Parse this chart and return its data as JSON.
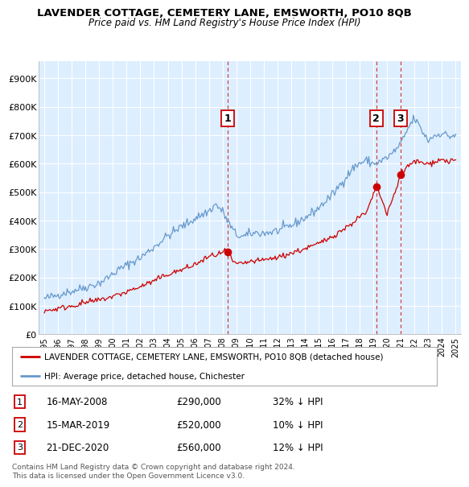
{
  "title": "LAVENDER COTTAGE, CEMETERY LANE, EMSWORTH, PO10 8QB",
  "subtitle": "Price paid vs. HM Land Registry's House Price Index (HPI)",
  "ylabel_ticks": [
    "£0",
    "£100K",
    "£200K",
    "£300K",
    "£400K",
    "£500K",
    "£600K",
    "£700K",
    "£800K",
    "£900K"
  ],
  "ytick_values": [
    0,
    100000,
    200000,
    300000,
    400000,
    500000,
    600000,
    700000,
    800000,
    900000
  ],
  "ylim": [
    0,
    960000
  ],
  "xlim_start": 1994.6,
  "xlim_end": 2025.4,
  "background_color": "#ddeeff",
  "fig_bg_color": "#ffffff",
  "grid_color": "#ffffff",
  "red_line_color": "#cc0000",
  "blue_line_color": "#6699cc",
  "sale_marker_color": "#cc0000",
  "sale_marker_size": 7,
  "vline_color": "#cc3333",
  "transactions": [
    {
      "num": 1,
      "date_str": "16-MAY-2008",
      "year": 2008.37,
      "price": 290000,
      "label": "32% ↓ HPI"
    },
    {
      "num": 2,
      "date_str": "15-MAR-2019",
      "year": 2019.21,
      "price": 520000,
      "label": "10% ↓ HPI"
    },
    {
      "num": 3,
      "date_str": "21-DEC-2020",
      "year": 2020.97,
      "price": 560000,
      "label": "12% ↓ HPI"
    }
  ],
  "legend_red_label": "LAVENDER COTTAGE, CEMETERY LANE, EMSWORTH, PO10 8QB (detached house)",
  "legend_blue_label": "HPI: Average price, detached house, Chichester",
  "footnote": "Contains HM Land Registry data © Crown copyright and database right 2024.\nThis data is licensed under the Open Government Licence v3.0.",
  "table_rows": [
    {
      "num": 1,
      "date": "16-MAY-2008",
      "price": "£290,000",
      "change": "32% ↓ HPI"
    },
    {
      "num": 2,
      "date": "15-MAR-2019",
      "price": "£520,000",
      "change": "10% ↓ HPI"
    },
    {
      "num": 3,
      "date": "21-DEC-2020",
      "price": "£560,000",
      "change": "12% ↓ HPI"
    }
  ],
  "hpi_anchors_x": [
    1995,
    1996,
    1997,
    1998,
    1999,
    2000,
    2001,
    2002,
    2003,
    2004,
    2005,
    2006,
    2007,
    2007.5,
    2008,
    2008.5,
    2009,
    2009.5,
    2010,
    2010.5,
    2011,
    2012,
    2013,
    2014,
    2015,
    2016,
    2017,
    2017.5,
    2018,
    2018.5,
    2019,
    2019.5,
    2020,
    2020.5,
    2021,
    2021.3,
    2021.6,
    2022,
    2022.3,
    2022.6,
    2023,
    2023.3,
    2023.6,
    2024,
    2024.3,
    2024.6,
    2025
  ],
  "hpi_anchors_y": [
    125000,
    138000,
    150000,
    163000,
    178000,
    208000,
    238000,
    265000,
    305000,
    345000,
    375000,
    405000,
    430000,
    455000,
    430000,
    385000,
    350000,
    345000,
    355000,
    360000,
    358000,
    365000,
    385000,
    410000,
    445000,
    490000,
    550000,
    580000,
    600000,
    610000,
    600000,
    605000,
    620000,
    640000,
    670000,
    700000,
    730000,
    760000,
    735000,
    710000,
    680000,
    695000,
    700000,
    710000,
    700000,
    695000,
    700000
  ],
  "red_anchors_x": [
    1995,
    1996,
    1997,
    1998,
    1999,
    2000,
    2001,
    2002,
    2003,
    2004,
    2005,
    2006,
    2007,
    2008.37,
    2008.7,
    2009,
    2009.5,
    2010,
    2011,
    2012,
    2013,
    2014,
    2015,
    2016,
    2017,
    2018,
    2018.5,
    2019.21,
    2019.6,
    2020,
    2020.97,
    2021,
    2021.5,
    2022,
    2022.5,
    2023,
    2023.5,
    2024,
    2024.5,
    2025
  ],
  "red_anchors_y": [
    82000,
    90000,
    100000,
    110000,
    118000,
    130000,
    148000,
    165000,
    185000,
    210000,
    225000,
    245000,
    272000,
    290000,
    258000,
    245000,
    248000,
    255000,
    260000,
    270000,
    285000,
    300000,
    318000,
    345000,
    375000,
    415000,
    430000,
    520000,
    480000,
    420000,
    560000,
    570000,
    590000,
    610000,
    605000,
    598000,
    610000,
    615000,
    608000,
    615000
  ]
}
